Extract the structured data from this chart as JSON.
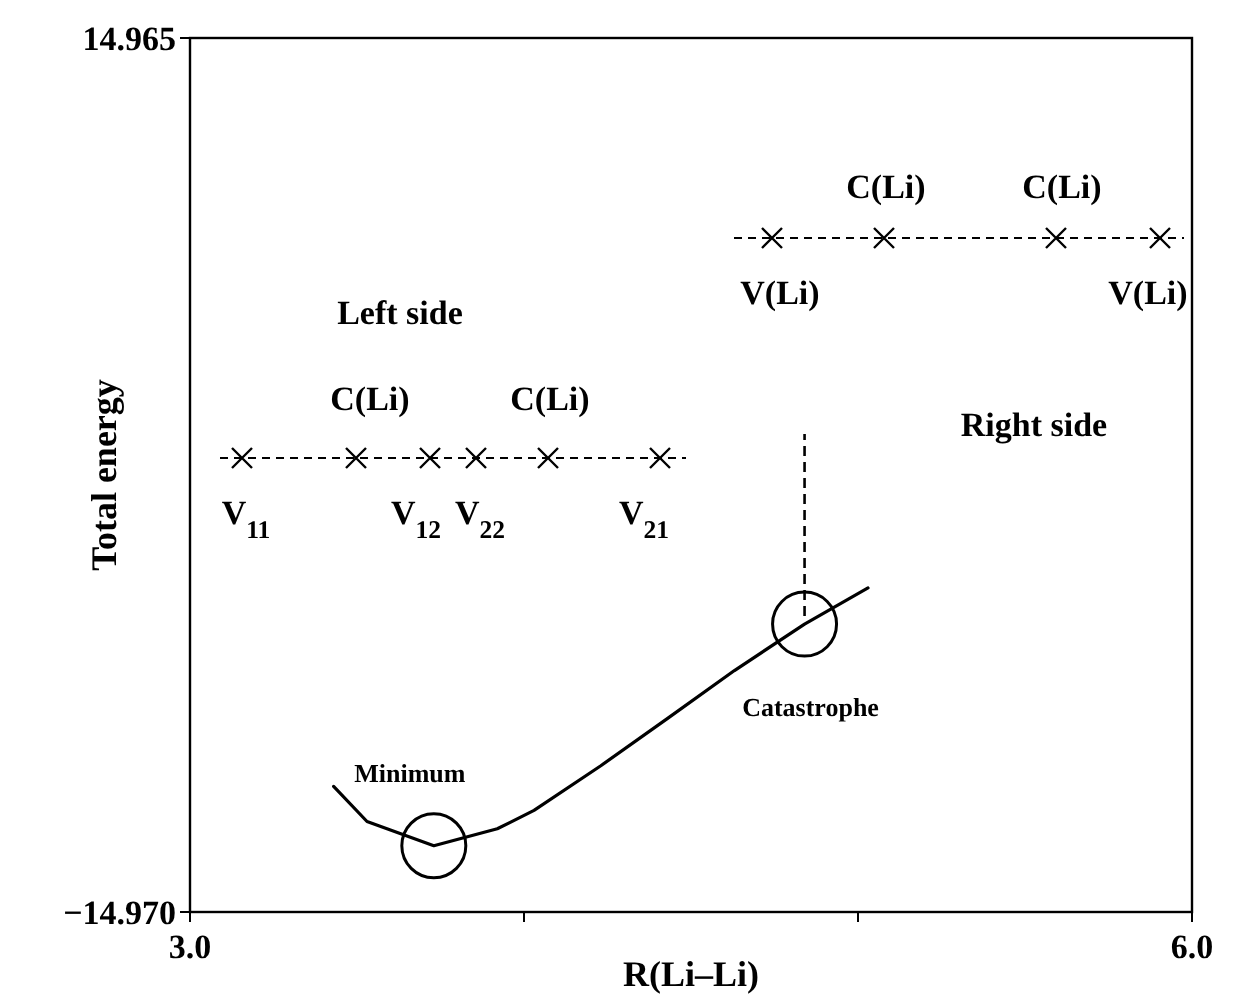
{
  "chart_data": {
    "type": "line",
    "xlabel": "R(Li–Li)",
    "ylabel": "Total energy",
    "x": [
      3.43,
      3.53,
      3.73,
      3.92,
      4.03,
      4.23,
      4.43,
      4.63,
      4.84,
      5.03
    ],
    "series": [
      {
        "color": "#000000",
        "values": [
          -10.67,
          -11.87,
          -12.7,
          -12.12,
          -11.49,
          -9.96,
          -8.34,
          -6.7,
          -5.11,
          -3.87
        ]
      }
    ],
    "xlim": [
      3.0,
      6.0
    ],
    "xticks": [
      {
        "value": 3.0,
        "label": "3.0"
      },
      {
        "value": 4.0,
        "label": null
      },
      {
        "value": 5.0,
        "label": null
      },
      {
        "value": 6.0,
        "label": "6.0"
      }
    ],
    "ylim": [
      -14.97,
      14.965
    ],
    "yticks": [
      {
        "value": -14.97,
        "label": "−14.970"
      },
      {
        "value": 14.965,
        "label": "14.965"
      }
    ],
    "marker": "none",
    "line_style": "solid",
    "annotations": [
      "Left side",
      "Right side",
      "C(Li)",
      "C(Li)",
      "C(Li)",
      "C(Li)",
      "V(Li)",
      "V(Li)",
      "V$_{11}$",
      "V$_{12}$",
      "V$_{22}$",
      "V$_{21}$",
      {
        "text": "Minimum",
        "x": 3.73,
        "y": -12.7
      },
      {
        "text": "Catastrophe",
        "x": 4.84,
        "y": -5.11
      }
    ]
  }
}
